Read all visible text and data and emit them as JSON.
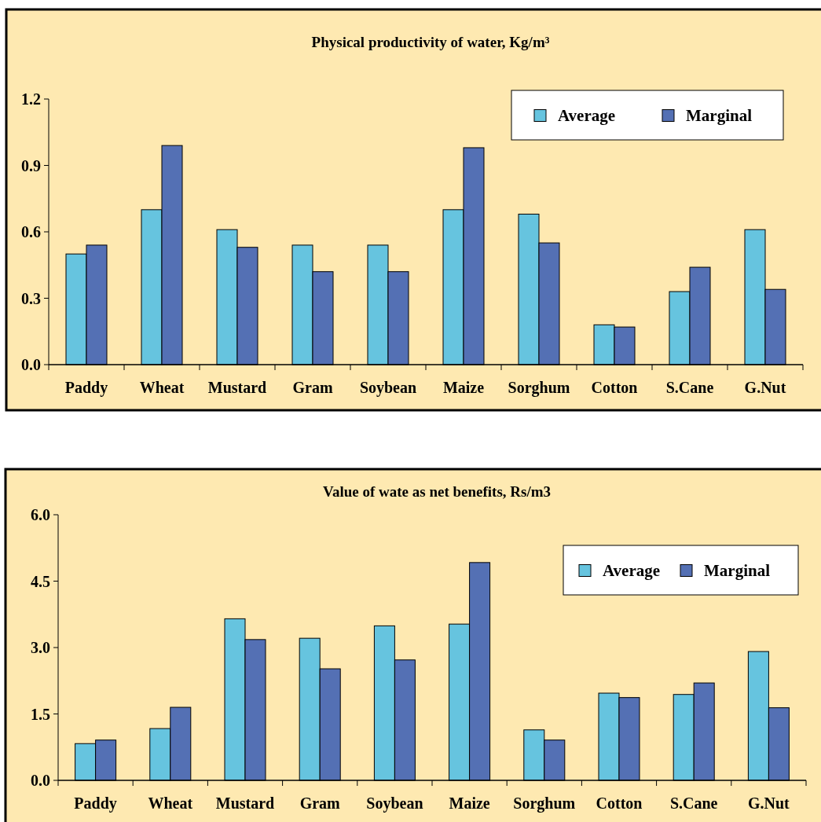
{
  "chart_data": [
    {
      "type": "bar",
      "title": "Physical productivity of water, Kg/m³",
      "categories": [
        "Paddy",
        "Wheat",
        "Mustard",
        "Gram",
        "Soybean",
        "Maize",
        "Sorghum",
        "Cotton",
        "S.Cane",
        "G.Nut"
      ],
      "series": [
        {
          "name": "Average",
          "color": "#66c4df",
          "values": [
            0.5,
            0.7,
            0.61,
            0.54,
            0.54,
            0.7,
            0.68,
            0.18,
            0.33,
            0.61
          ]
        },
        {
          "name": "Marginal",
          "color": "#5470b4",
          "values": [
            0.54,
            0.99,
            0.53,
            0.42,
            0.42,
            0.98,
            0.55,
            0.17,
            0.44,
            0.34
          ]
        }
      ],
      "ylim": [
        0,
        1.2
      ],
      "yticks": [
        {
          "value": 0,
          "label": "0.0"
        },
        0.3,
        0.6,
        0.9,
        1.2
      ],
      "legend": "top right"
    },
    {
      "type": "bar",
      "title": "Value of wate as net benefits, Rs/m3",
      "categories": [
        "Paddy",
        "Wheat",
        "Mustard",
        "Gram",
        "Soybean",
        "Maize",
        "Sorghum",
        "Cotton",
        "S.Cane",
        "G.Nut"
      ],
      "series": [
        {
          "name": "Average",
          "color": "#66c4df",
          "values": [
            0.83,
            1.17,
            3.65,
            3.21,
            3.49,
            3.53,
            1.14,
            1.97,
            1.94,
            2.91
          ]
        },
        {
          "name": "Marginal",
          "color": "#5470b4",
          "values": [
            0.91,
            1.65,
            3.18,
            2.52,
            2.72,
            4.92,
            0.91,
            1.87,
            2.2,
            1.64
          ]
        }
      ],
      "ylim": [
        0,
        6
      ],
      "yticks": [
        {
          "value": 0,
          "label": "0.0"
        },
        1.5,
        {
          "value": 3,
          "label": "3.0"
        },
        4.5,
        {
          "value": 6,
          "label": "6.0"
        }
      ],
      "legend": "top right"
    }
  ]
}
